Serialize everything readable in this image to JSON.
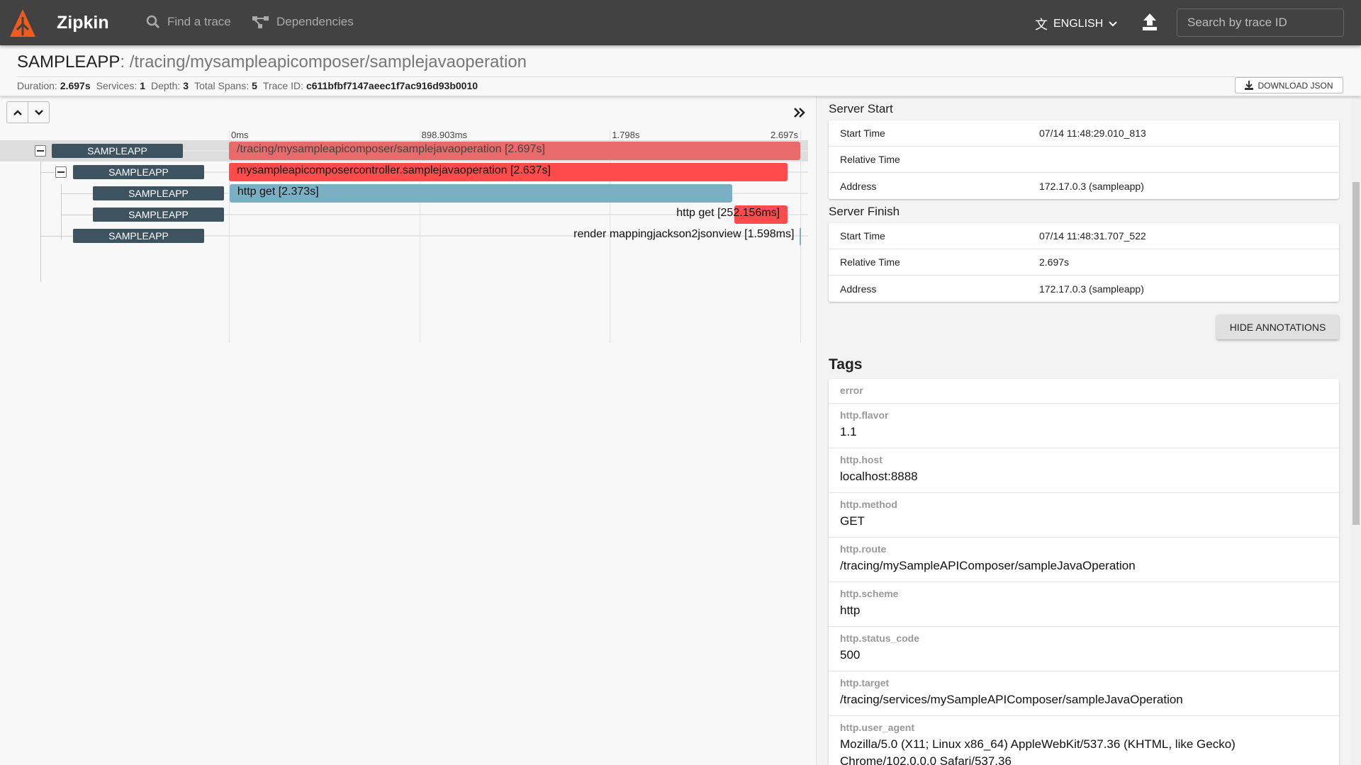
{
  "header": {
    "brand": "Zipkin",
    "nav": [
      {
        "label": "Find a trace",
        "icon": "search-icon"
      },
      {
        "label": "Dependencies",
        "icon": "dependencies-icon"
      }
    ],
    "language": "ENGLISH",
    "search_placeholder": "Search by trace ID",
    "colors": {
      "bar": "#424242",
      "logo": "#f05a1a"
    }
  },
  "trace": {
    "service": "SAMPLEAPP",
    "separator": ": ",
    "operation": "/tracing/mysampleapicomposer/samplejavaoperation",
    "stats": [
      {
        "label": "Duration:",
        "value": "2.697s"
      },
      {
        "label": "Services:",
        "value": "1"
      },
      {
        "label": "Depth:",
        "value": "3"
      },
      {
        "label": "Total Spans:",
        "value": "5"
      },
      {
        "label": "Trace ID:",
        "value": "c611bfbf7147aeec1f7ac916d93b0010"
      }
    ],
    "download_label": "DOWNLOAD JSON"
  },
  "timeline": {
    "total_ms": 2697,
    "ticks": [
      "0ms",
      "898.903ms",
      "1.798s",
      "2.697s"
    ],
    "spans": [
      {
        "service": "SAMPLEAPP",
        "label": "/tracing/mysampleapicomposer/samplejavaoperation [2.697s]",
        "start_ms": 0,
        "duration_ms": 2697,
        "depth": 0,
        "collapsible": true,
        "selected": true,
        "color": "#e86a6a"
      },
      {
        "service": "SAMPLEAPP",
        "label": "mysampleapicomposercontroller.samplejavaoperation [2.637s]",
        "start_ms": 0,
        "duration_ms": 2637,
        "depth": 1,
        "collapsible": true,
        "selected": false,
        "color": "#ff4b4b"
      },
      {
        "service": "SAMPLEAPP",
        "label": "http get [2.373s]",
        "start_ms": 3,
        "duration_ms": 2373,
        "depth": 2,
        "collapsible": false,
        "selected": false,
        "color": "#7aafc4"
      },
      {
        "service": "SAMPLEAPP",
        "label": "http get [252.156ms]",
        "start_ms": 2385,
        "duration_ms": 252.156,
        "depth": 2,
        "collapsible": false,
        "selected": false,
        "color": "#ff4b4b"
      },
      {
        "service": "SAMPLEAPP",
        "label": "render mappingjackson2jsonview [1.598ms]",
        "start_ms": 2695,
        "duration_ms": 1.598,
        "depth": 1,
        "collapsible": false,
        "selected": false,
        "color": "#7aafc4"
      }
    ]
  },
  "details": {
    "annotations": [
      {
        "title": "Server Start",
        "rows": [
          {
            "key": "Start Time",
            "value": "07/14 11:48:29.010_813"
          },
          {
            "key": "Relative Time",
            "value": ""
          },
          {
            "key": "Address",
            "value": "172.17.0.3 (sampleapp)"
          }
        ]
      },
      {
        "title": "Server Finish",
        "rows": [
          {
            "key": "Start Time",
            "value": "07/14 11:48:31.707_522"
          },
          {
            "key": "Relative Time",
            "value": "2.697s"
          },
          {
            "key": "Address",
            "value": "172.17.0.3 (sampleapp)"
          }
        ]
      }
    ],
    "hide_annotations_label": "HIDE ANNOTATIONS",
    "tags_title": "Tags",
    "tags": [
      {
        "key": "error",
        "value": ""
      },
      {
        "key": "http.flavor",
        "value": "1.1"
      },
      {
        "key": "http.host",
        "value": "localhost:8888"
      },
      {
        "key": "http.method",
        "value": "GET"
      },
      {
        "key": "http.route",
        "value": "/tracing/mySampleAPIComposer/sampleJavaOperation"
      },
      {
        "key": "http.scheme",
        "value": "http"
      },
      {
        "key": "http.status_code",
        "value": "500"
      },
      {
        "key": "http.target",
        "value": "/tracing/services/mySampleAPIComposer/sampleJavaOperation"
      },
      {
        "key": "http.user_agent",
        "value": "Mozilla/5.0 (X11; Linux x86_64) AppleWebKit/537.36 (KHTML, like Gecko) Chrome/102.0.0.0 Safari/537.36"
      }
    ]
  }
}
